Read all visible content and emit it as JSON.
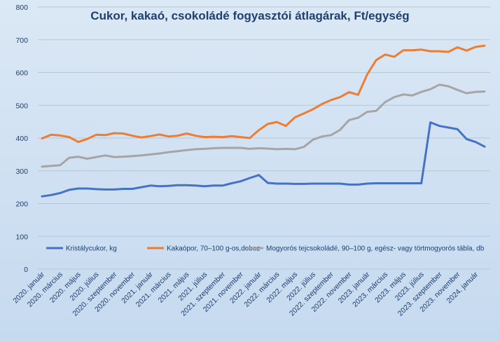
{
  "chart_data": {
    "type": "line",
    "title": "Cukor, kakaó, csokoládé fogyasztói átlagárak, Ft/egység",
    "xlabel": "",
    "ylabel": "",
    "ylim": [
      0,
      800
    ],
    "yticks": [
      0,
      100,
      200,
      300,
      400,
      500,
      600,
      700,
      800
    ],
    "grid": "horizontal",
    "legend_position": "bottom-inside",
    "x_tick_labels": [
      "2020. január",
      "2020. március",
      "2020. május",
      "2020. július",
      "2020. szeptember",
      "2020. november",
      "2021. január",
      "2021. március",
      "2021. május",
      "2021. július",
      "2021. szeptember",
      "2021. november",
      "2022. január",
      "2022. március",
      "2022. május",
      "2022. július",
      "2022. szeptember",
      "2022. november",
      "2023. január",
      "2023. március",
      "2023. május",
      "2023. július",
      "2023. szeptember",
      "2023. november",
      "2024. január"
    ],
    "x_tick_every": 2,
    "x": [
      "2020-01",
      "2020-02",
      "2020-03",
      "2020-04",
      "2020-05",
      "2020-06",
      "2020-07",
      "2020-08",
      "2020-09",
      "2020-10",
      "2020-11",
      "2020-12",
      "2021-01",
      "2021-02",
      "2021-03",
      "2021-04",
      "2021-05",
      "2021-06",
      "2021-07",
      "2021-08",
      "2021-09",
      "2021-10",
      "2021-11",
      "2021-12",
      "2022-01",
      "2022-02",
      "2022-03",
      "2022-04",
      "2022-05",
      "2022-06",
      "2022-07",
      "2022-08",
      "2022-09",
      "2022-10",
      "2022-11",
      "2022-12",
      "2023-01",
      "2023-02",
      "2023-03",
      "2023-04",
      "2023-05",
      "2023-06",
      "2023-07",
      "2023-08",
      "2023-09",
      "2023-10",
      "2023-11",
      "2023-12",
      "2024-01",
      "2024-02"
    ],
    "series": [
      {
        "name": "Kristálycukor, kg",
        "color": "#4472c4",
        "values": [
          222,
          226,
          232,
          242,
          246,
          246,
          244,
          243,
          243,
          245,
          245,
          250,
          255,
          253,
          254,
          256,
          256,
          255,
          253,
          255,
          255,
          262,
          268,
          278,
          287,
          263,
          261,
          261,
          260,
          260,
          261,
          261,
          261,
          261,
          258,
          258,
          261,
          262,
          262,
          262,
          262,
          262,
          262,
          448,
          437,
          432,
          427,
          397,
          388,
          374
        ]
      },
      {
        "name": "Kakaópor, 70–100  g-os,doboz",
        "color": "#ed7d31",
        "values": [
          399,
          410,
          408,
          403,
          388,
          397,
          410,
          409,
          415,
          414,
          407,
          402,
          406,
          411,
          405,
          407,
          414,
          407,
          403,
          404,
          403,
          406,
          403,
          400,
          424,
          443,
          449,
          437,
          463,
          475,
          488,
          504,
          516,
          525,
          540,
          532,
          594,
          638,
          655,
          648,
          668,
          668,
          670,
          665,
          665,
          663,
          677,
          667,
          678,
          682
        ]
      },
      {
        "name": "Mogyorós tejcsokoládé, 90–100  g, egész- vagy törtmogyorós tábla, db",
        "color": "#a5a5a5",
        "values": [
          313,
          315,
          317,
          340,
          343,
          337,
          342,
          347,
          342,
          343,
          345,
          347,
          350,
          353,
          357,
          360,
          363,
          366,
          367,
          369,
          370,
          370,
          370,
          367,
          369,
          368,
          366,
          367,
          366,
          373,
          395,
          405,
          409,
          425,
          455,
          462,
          480,
          483,
          510,
          525,
          533,
          530,
          541,
          549,
          563,
          558,
          547,
          537,
          541,
          542
        ]
      }
    ]
  }
}
